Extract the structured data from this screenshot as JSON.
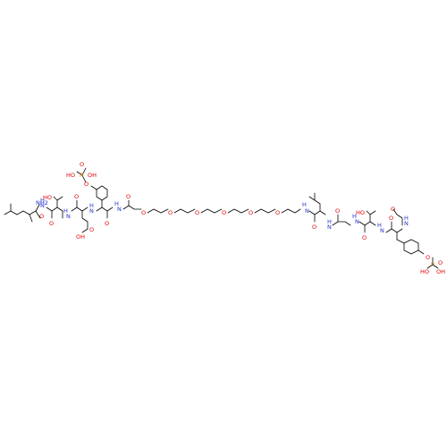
{
  "colors": {
    "background": "#ffffff",
    "carbon_bond": "#000000",
    "oxygen": "#e00000",
    "nitrogen": "#2233cc",
    "phosphorus": "#e08000"
  },
  "labels": {
    "left_terminus": {
      "nh2": "NH2",
      "o_amide": "O",
      "nh": "H",
      "n1": "N"
    },
    "thr1": {
      "oh": "HO",
      "o": "O",
      "nh": "H",
      "n": "N"
    },
    "glu": {
      "o": "O",
      "cooh_o": "O",
      "cooh_oh": "OH",
      "nh": "H",
      "n": "N"
    },
    "ptyr1": {
      "o": "O",
      "p": "P",
      "oh_left": "HO",
      "oh": "OH",
      "o_top": "O",
      "o_ring": "O",
      "nh": "H",
      "n": "N"
    },
    "linker": {
      "o_carbonyl": "O",
      "o1": "O",
      "o2": "O",
      "o3": "O",
      "o4": "O",
      "o5": "O",
      "o6": "O",
      "nh": "H",
      "n": "N"
    },
    "leu2": {
      "o": "O",
      "nh": "H",
      "n": "N"
    },
    "gly": {
      "o": "O",
      "nh": "H",
      "n": "N"
    },
    "thr2": {
      "oh": "HO",
      "o": "O",
      "nh": "H",
      "n": "N"
    },
    "acetyl_ptyr": {
      "o_acetyl": "O",
      "o": "O",
      "nh": "H",
      "n": "N",
      "o_ring": "O",
      "p": "P",
      "oh_left": "HO",
      "oh": "OH",
      "o_p": "O"
    }
  }
}
